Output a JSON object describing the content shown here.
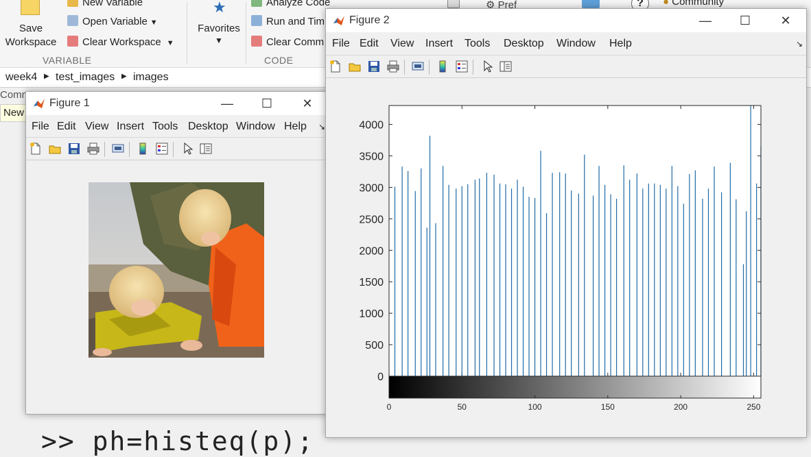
{
  "ribbon": {
    "save_label_1": "Save",
    "save_label_2": "Workspace",
    "new_variable": "New Variable",
    "open_variable": "Open Variable",
    "clear_workspace": "Clear Workspace",
    "section_variable": "VARIABLE",
    "favorites": "Favorites",
    "analyze_code": "Analyze Code",
    "run_and_time": "Run and Tim",
    "clear_commands": "Clear Comm",
    "section_code": "CODE",
    "preferences": "Pref",
    "community": "Community"
  },
  "path": [
    "week4",
    "test_images",
    "images"
  ],
  "left_panel": {
    "label_1": "Comm",
    "label_2": "New"
  },
  "command": ">> ph=histeq(p);",
  "figure1": {
    "title": "Figure 1",
    "menu": [
      "File",
      "Edit",
      "View",
      "Insert",
      "Tools",
      "Desktop",
      "Window",
      "Help"
    ]
  },
  "figure2": {
    "title": "Figure 2",
    "menu": [
      "File",
      "Edit",
      "View",
      "Insert",
      "Tools",
      "Desktop",
      "Window",
      "Help"
    ]
  },
  "colors": {
    "bar": "#1f6aa5",
    "titlebar": "#ffffff",
    "background": "#f0f0f0"
  },
  "chart_data": {
    "type": "bar",
    "title": "",
    "xlabel": "",
    "ylabel": "",
    "ylim": [
      0,
      4300
    ],
    "xlim": [
      0,
      255
    ],
    "yticks": [
      0,
      500,
      1000,
      1500,
      2000,
      2500,
      3000,
      3500,
      4000
    ],
    "xticks": [
      0,
      50,
      100,
      150,
      200,
      250
    ],
    "colorbar": "gray",
    "x": [
      4,
      9,
      13,
      18,
      22,
      26,
      28,
      32,
      37,
      41,
      46,
      50,
      54,
      59,
      62,
      67,
      72,
      76,
      80,
      84,
      88,
      92,
      96,
      100,
      104,
      108,
      112,
      117,
      121,
      125,
      130,
      134,
      140,
      144,
      148,
      152,
      156,
      161,
      165,
      170,
      174,
      178,
      182,
      186,
      190,
      194,
      198,
      202,
      206,
      210,
      215,
      219,
      223,
      228,
      234,
      238,
      243,
      245,
      248,
      252,
      255
    ],
    "values": [
      3010,
      3330,
      3260,
      2940,
      3300,
      2360,
      3820,
      2430,
      3340,
      3040,
      2980,
      3020,
      3050,
      3120,
      3140,
      3230,
      3200,
      3060,
      3050,
      2980,
      3120,
      3010,
      2850,
      2830,
      3580,
      2590,
      3230,
      3240,
      3220,
      2950,
      2900,
      3520,
      2870,
      3340,
      3040,
      2890,
      2820,
      3350,
      3120,
      3220,
      2980,
      3060,
      3060,
      3040,
      2980,
      3340,
      3020,
      2740,
      3210,
      3270,
      2820,
      2980,
      3330,
      2920,
      3390,
      2810,
      1780,
      2620,
      4300,
      3060,
      3650
    ]
  }
}
